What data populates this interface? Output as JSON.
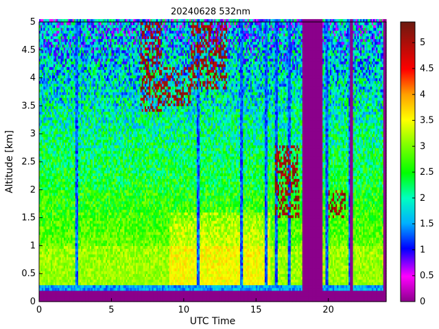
{
  "chart_data": {
    "type": "heatmap",
    "title": "20240628 532nm",
    "xlabel": "UTC Time",
    "ylabel": "Altitude [km]",
    "xlim": [
      0,
      24
    ],
    "ylim": [
      0,
      5
    ],
    "xticks": [
      0,
      5,
      10,
      15,
      20
    ],
    "yticks": [
      0,
      0.5,
      1,
      1.5,
      2,
      2.5,
      3,
      3.5,
      4,
      4.5,
      5
    ],
    "colorbar": {
      "range": [
        0,
        5.4
      ],
      "ticks": [
        0,
        0.5,
        1,
        1.5,
        2,
        2.5,
        3,
        3.5,
        4,
        4.5,
        5
      ],
      "colormap": "jet-like: purple, magenta, blue, cyan, green, yellow, orange, red, dark red"
    },
    "grid": false,
    "no_data_color": "#8B008B",
    "features": {
      "surface_layer_km": [
        0,
        0.3
      ],
      "no_data_time_ranges_utc": [
        [
          18.2,
          19.6
        ],
        [
          21.5,
          21.7
        ]
      ],
      "cloud_patches": [
        {
          "utc": [
            7.0,
            8.5
          ],
          "altitude_km": [
            3.4,
            5.0
          ]
        },
        {
          "utc": [
            8.5,
            10.5
          ],
          "altitude_km": [
            3.5,
            4.2
          ]
        },
        {
          "utc": [
            10.5,
            13.0
          ],
          "altitude_km": [
            3.8,
            5.0
          ]
        },
        {
          "utc": [
            16.3,
            18.0
          ],
          "altitude_km": [
            1.5,
            2.8
          ]
        },
        {
          "utc": [
            20.0,
            21.2
          ],
          "altitude_km": [
            1.5,
            2.0
          ]
        }
      ],
      "clear_columns_utc": [
        2.6,
        11.0,
        14.0,
        15.7,
        16.4,
        17.3,
        19.9,
        21.5
      ]
    }
  }
}
